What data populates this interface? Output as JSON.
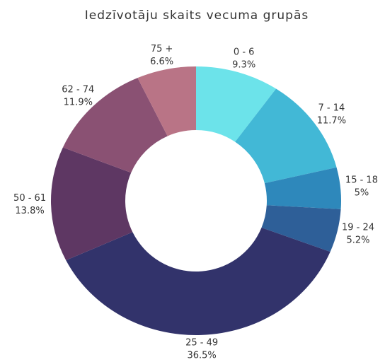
{
  "chart_data": {
    "type": "donut",
    "title": "Iedzīvotāju skaits vecuma grupās",
    "categories": [
      "0 - 6",
      "7 - 14",
      "15 - 18",
      "19 - 24",
      "25 - 49",
      "50 - 61",
      "62 - 74",
      "75 +"
    ],
    "values": [
      9.3,
      11.7,
      5,
      5.2,
      36.5,
      13.8,
      11.9,
      6.6
    ],
    "value_labels": [
      "9.3%",
      "11.7%",
      "5%",
      "5.2%",
      "36.5%",
      "13.8%",
      "11.9%",
      "6.6%"
    ],
    "colors": [
      "#6ce3ea",
      "#42b8d6",
      "#2e88bb",
      "#2e5f98",
      "#32336b",
      "#5e3763",
      "#8a5173",
      "#b97486"
    ]
  }
}
